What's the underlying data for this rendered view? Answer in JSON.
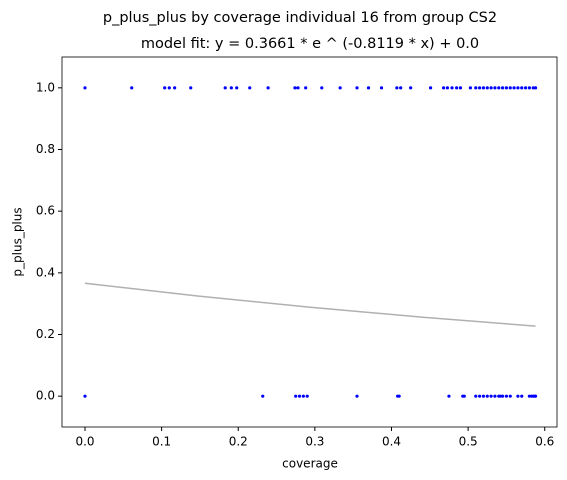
{
  "chart_data": {
    "type": "scatter",
    "title": "p_plus_plus by coverage individual 16 from group CS2",
    "subtitle": "model fit: y = 0.3661 * e ^ (-0.8119 * x) + 0.0",
    "xlabel": "coverage",
    "ylabel": "p_plus_plus",
    "xlim": [
      -0.03,
      0.616
    ],
    "ylim": [
      -0.1,
      1.1
    ],
    "xticks": [
      {
        "value": 0,
        "label": "0.0"
      },
      0.1,
      0.2,
      0.3,
      0.4,
      0.5,
      0.6
    ],
    "yticks": [
      {
        "value": 0,
        "label": "0.0"
      },
      0.2,
      0.4,
      0.6,
      0.8,
      {
        "value": 1,
        "label": "1.0"
      }
    ],
    "series": [
      {
        "type": "scatter",
        "color": "#0000ff",
        "x": [
          0.0,
          0.061,
          0.104,
          0.11,
          0.117,
          0.138,
          0.183,
          0.191,
          0.198,
          0.215,
          0.239,
          0.274,
          0.278,
          0.288,
          0.309,
          0.333,
          0.355,
          0.37,
          0.387,
          0.407,
          0.412,
          0.425,
          0.451,
          0.468,
          0.473,
          0.479,
          0.485,
          0.49,
          0.503,
          0.51,
          0.515,
          0.52,
          0.525,
          0.53,
          0.535,
          0.54,
          0.545,
          0.55,
          0.555,
          0.56,
          0.565,
          0.57,
          0.575,
          0.58,
          0.585,
          0.588,
          0.0,
          0.232,
          0.275,
          0.28,
          0.285,
          0.29,
          0.355,
          0.408,
          0.41,
          0.475,
          0.493,
          0.495,
          0.51,
          0.515,
          0.52,
          0.525,
          0.53,
          0.535,
          0.54,
          0.542,
          0.545,
          0.55,
          0.555,
          0.565,
          0.57,
          0.58,
          0.583,
          0.585,
          0.587,
          0.588
        ],
        "values": [
          1,
          1,
          1,
          1,
          1,
          1,
          1,
          1,
          1,
          1,
          1,
          1,
          1,
          1,
          1,
          1,
          1,
          1,
          1,
          1,
          1,
          1,
          1,
          1,
          1,
          1,
          1,
          1,
          1,
          1,
          1,
          1,
          1,
          1,
          1,
          1,
          1,
          1,
          1,
          1,
          1,
          1,
          1,
          1,
          1,
          1,
          0,
          0,
          0,
          0,
          0,
          0,
          0,
          0,
          0,
          0,
          0,
          0,
          0,
          0,
          0,
          0,
          0,
          0,
          0,
          0,
          0,
          0,
          0,
          0,
          0,
          0,
          0,
          0,
          0,
          0
        ]
      },
      {
        "type": "line",
        "color": "#b0b0b0",
        "x": [
          0,
          0.147,
          0.294,
          0.441,
          0.588
        ],
        "values": [
          0.3661,
          0.3249,
          0.2884,
          0.2559,
          0.2271
        ]
      }
    ]
  }
}
